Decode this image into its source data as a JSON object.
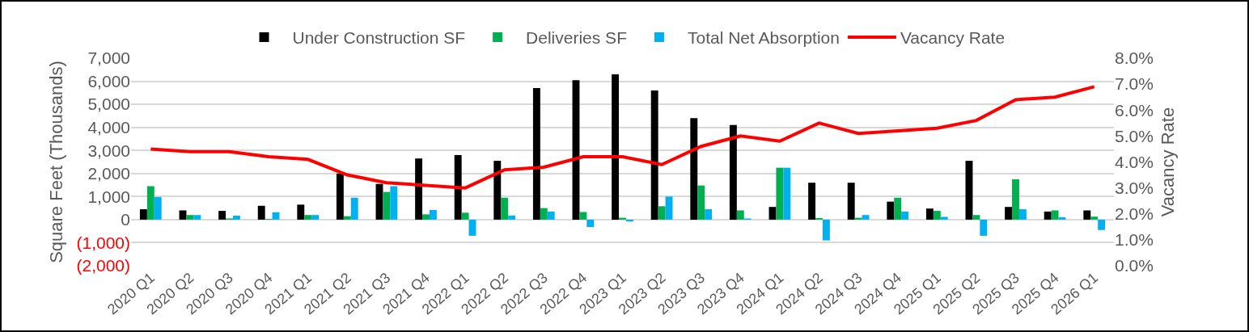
{
  "chart_data": {
    "type": "bar",
    "ylabel": "Square Feet (Thousands)",
    "y2label": "Vacancy Rate",
    "categories": [
      "2020 Q1",
      "2020 Q2",
      "2020 Q3",
      "2020 Q4",
      "2021 Q1",
      "2021 Q2",
      "2021 Q3",
      "2021 Q4",
      "2022 Q1",
      "2022 Q2",
      "2022 Q3",
      "2022 Q4",
      "2023 Q1",
      "2023 Q2",
      "2023 Q3",
      "2023 Q4",
      "2024 Q1",
      "2024 Q2",
      "2024 Q3",
      "2024 Q4",
      "2025 Q1",
      "2025 Q2",
      "2025 Q3",
      "2025 Q4",
      "2026 Q1"
    ],
    "series": [
      {
        "name": "Under Construction SF",
        "color": "#000000",
        "values": [
          450,
          400,
          380,
          600,
          650,
          2000,
          1550,
          2650,
          2800,
          2550,
          5700,
          6050,
          6300,
          5600,
          4400,
          4100,
          550,
          1600,
          1600,
          780,
          480,
          2550,
          550,
          350,
          400
        ]
      },
      {
        "name": "Deliveries SF",
        "color": "#00b050",
        "values": [
          1450,
          200,
          50,
          30,
          200,
          150,
          1200,
          230,
          300,
          950,
          500,
          330,
          80,
          580,
          1480,
          400,
          2250,
          70,
          80,
          950,
          380,
          200,
          1750,
          400,
          130
        ]
      },
      {
        "name": "Total Net Absorption",
        "color": "#00b0f0",
        "values": [
          980,
          200,
          170,
          320,
          200,
          950,
          1450,
          420,
          -700,
          180,
          350,
          -320,
          -80,
          1000,
          450,
          50,
          2250,
          -900,
          200,
          350,
          120,
          -700,
          450,
          100,
          -450
        ]
      },
      {
        "name": "Vacancy Rate",
        "type": "line",
        "axis": "y2",
        "color": "#ff0000",
        "values": [
          4.5,
          4.4,
          4.4,
          4.2,
          4.1,
          3.5,
          3.2,
          3.1,
          3.0,
          3.7,
          3.8,
          4.2,
          4.2,
          3.9,
          4.6,
          5.0,
          4.8,
          5.5,
          5.1,
          5.2,
          5.3,
          5.6,
          6.4,
          6.5,
          6.9
        ]
      }
    ],
    "ylim": [
      -2000,
      7000
    ],
    "yticks": [
      {
        "value": -2000,
        "label": "(2,000)"
      },
      {
        "value": -1000,
        "label": "(1,000)"
      },
      0,
      {
        "value": 1000,
        "label": "1,000"
      },
      {
        "value": 2000,
        "label": "2,000"
      },
      {
        "value": 3000,
        "label": "3,000"
      },
      {
        "value": 4000,
        "label": "4,000"
      },
      {
        "value": 5000,
        "label": "5,000"
      },
      {
        "value": 6000,
        "label": "6,000"
      },
      {
        "value": 7000,
        "label": "7,000"
      }
    ],
    "y2lim": [
      0,
      8
    ],
    "y2ticks": [
      {
        "value": 0,
        "label": "0.0%"
      },
      {
        "value": 1,
        "label": "1.0%"
      },
      {
        "value": 2,
        "label": "2.0%"
      },
      {
        "value": 3,
        "label": "3.0%"
      },
      {
        "value": 4,
        "label": "4.0%"
      },
      {
        "value": 5,
        "label": "5.0%"
      },
      {
        "value": 6,
        "label": "6.0%"
      },
      {
        "value": 7,
        "label": "7.0%"
      },
      {
        "value": 8,
        "label": "8.0%"
      }
    ],
    "grid": "y",
    "legend": "top"
  }
}
